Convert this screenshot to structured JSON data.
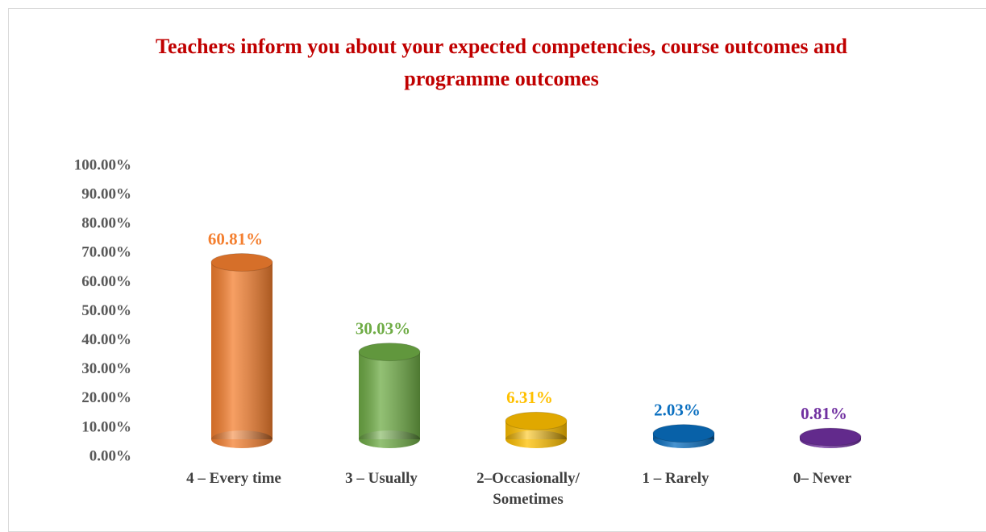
{
  "chart_data": {
    "type": "bar",
    "title": "Teachers inform you about your expected competencies, course outcomes and programme outcomes",
    "categories": [
      "4 – Every time",
      "3 – Usually",
      "2–Occasionally/ Sometimes",
      "1 – Rarely",
      "0– Never"
    ],
    "values": [
      60.81,
      30.03,
      6.31,
      2.03,
      0.81
    ],
    "value_labels": [
      "60.81%",
      "30.03%",
      "6.31%",
      "2.03%",
      "0.81%"
    ],
    "colors": [
      "#f47f2f",
      "#6fac46",
      "#ffc000",
      "#0a6fc0",
      "#7030a0"
    ],
    "ylim": [
      0,
      100
    ],
    "yticks": [
      {
        "value": 0,
        "label": "0.00%"
      },
      {
        "value": 10,
        "label": "10.00%"
      },
      {
        "value": 20,
        "label": "20.00%"
      },
      {
        "value": 30,
        "label": "30.00%"
      },
      {
        "value": 40,
        "label": "40.00%"
      },
      {
        "value": 50,
        "label": "50.00%"
      },
      {
        "value": 60,
        "label": "60.00%"
      },
      {
        "value": 70,
        "label": "70.00%"
      },
      {
        "value": 80,
        "label": "80.00%"
      },
      {
        "value": 90,
        "label": "90.00%"
      },
      {
        "value": 100,
        "label": "100.00%"
      }
    ]
  }
}
